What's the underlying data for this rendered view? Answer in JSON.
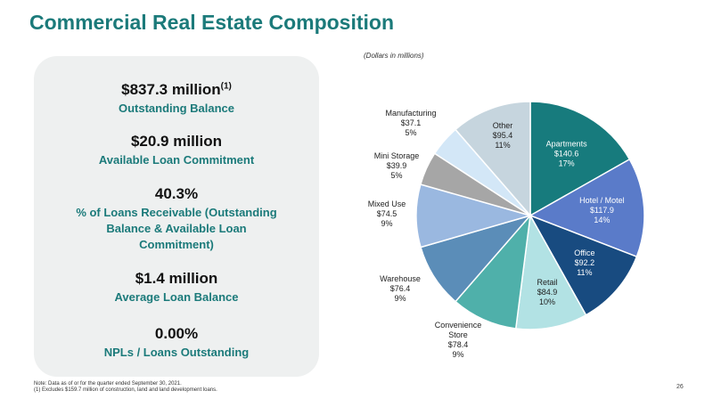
{
  "title": "Commercial Real Estate Composition",
  "subtitle": "(Dollars in millions)",
  "stats": [
    {
      "value": "$837.3 million",
      "sup": "(1)",
      "label_lines": [
        "Outstanding Balance"
      ]
    },
    {
      "value": "$20.9 million",
      "sup": "",
      "label_lines": [
        "Available Loan Commitment"
      ]
    },
    {
      "value": "40.3%",
      "sup": "",
      "label_lines": [
        "% of Loans Receivable (Outstanding",
        "Balance & Available Loan",
        "Commitment)"
      ]
    },
    {
      "value": "$1.4 million",
      "sup": "",
      "label_lines": [
        "Average Loan Balance"
      ]
    },
    {
      "value": "0.00%",
      "sup": "",
      "label_lines": [
        "NPLs / Loans Outstanding"
      ]
    }
  ],
  "notes": [
    "Note: Data as of or for the quarter ended September 30, 2021.",
    "(1)      Excludes $159.7 million of construction, land and land development loans."
  ],
  "page_number": "26",
  "colors": {
    "accent": "#1b7a7a"
  },
  "chart_data": {
    "type": "pie",
    "slices": [
      {
        "label": "Apartments",
        "value": 140.6,
        "value_text": "$140.6",
        "pct_text": "17%",
        "color": "#177b7d",
        "label_color": "#ffffff"
      },
      {
        "label": "Hotel / Motel",
        "value": 117.9,
        "value_text": "$117.9",
        "pct_text": "14%",
        "color": "#5a7bc9",
        "label_color": "#ffffff"
      },
      {
        "label": "Office",
        "value": 92.2,
        "value_text": "$92.2",
        "pct_text": "11%",
        "color": "#184b80",
        "label_color": "#ffffff"
      },
      {
        "label": "Retail",
        "value": 84.9,
        "value_text": "$84.9",
        "pct_text": "10%",
        "color": "#b2e2e4",
        "label_color": "#222222"
      },
      {
        "label": "Convenience Store",
        "label_lines": [
          "Convenience",
          "Store"
        ],
        "value": 78.4,
        "value_text": "$78.4",
        "pct_text": "9%",
        "color": "#4fb0aa",
        "label_color": "#222222"
      },
      {
        "label": "Warehouse",
        "value": 76.4,
        "value_text": "$76.4",
        "pct_text": "9%",
        "color": "#5b8db8",
        "label_color": "#222222"
      },
      {
        "label": "Mixed Use",
        "value": 74.5,
        "value_text": "$74.5",
        "pct_text": "9%",
        "color": "#9ab8e0",
        "label_color": "#222222"
      },
      {
        "label": "Mini Storage",
        "value": 39.9,
        "value_text": "$39.9",
        "pct_text": "5%",
        "color": "#a6a6a6",
        "label_color": "#222222"
      },
      {
        "label": "Manufacturing",
        "value": 37.1,
        "value_text": "$37.1",
        "pct_text": "5%",
        "color": "#d3e7f7",
        "label_color": "#222222"
      },
      {
        "label": "Other",
        "value": 95.4,
        "value_text": "$95.4",
        "pct_text": "11%",
        "color": "#c6d5de",
        "label_color": "#222222"
      }
    ]
  }
}
